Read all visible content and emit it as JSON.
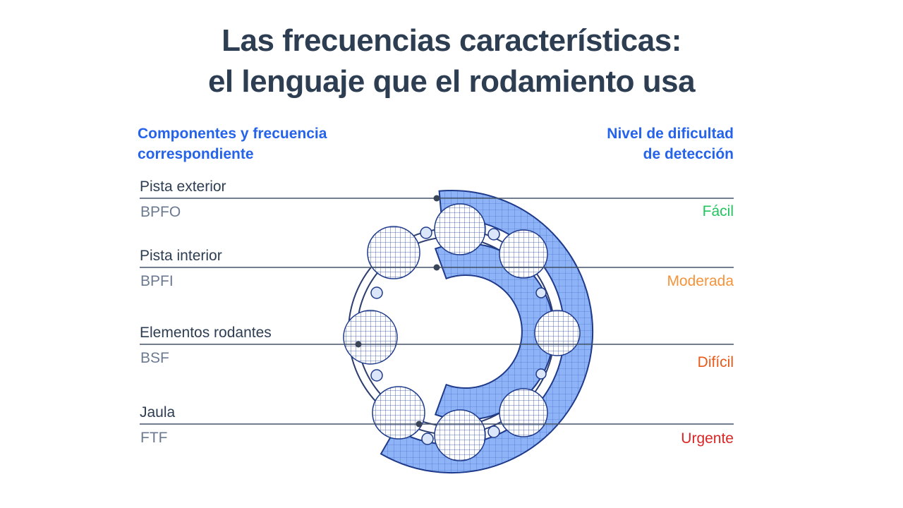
{
  "title": [
    "Las frecuencias características:",
    "el lenguaje que el rodamiento usa"
  ],
  "left_header": [
    "Componentes y frecuencia",
    "correspondiente"
  ],
  "right_header": [
    "Nivel de dificultad",
    "de detección"
  ],
  "rows": [
    {
      "component": "Pista exterior",
      "code": "BPFO",
      "difficulty": "Fácil"
    },
    {
      "component": "Pista interior",
      "code": "BPFI",
      "difficulty": "Moderada"
    },
    {
      "component": "Elementos rodantes",
      "code": "BSF",
      "difficulty": "Difícil"
    },
    {
      "component": "Jaula",
      "code": "FTF",
      "difficulty": "Urgente"
    }
  ]
}
